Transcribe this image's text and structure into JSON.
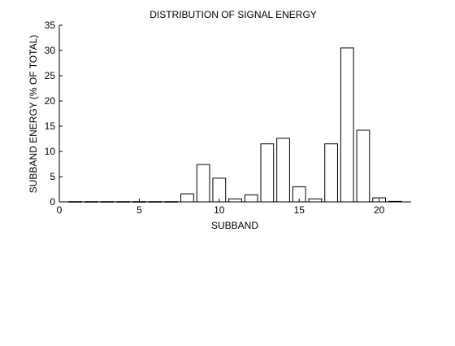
{
  "chart_data": {
    "type": "bar",
    "title": "DISTRIBUTION OF SIGNAL ENERGY",
    "xlabel": "SUBBAND",
    "ylabel": "SUBBAND ENERGY (% OF TOTAL)",
    "x": [
      1,
      2,
      3,
      4,
      5,
      6,
      7,
      8,
      9,
      10,
      11,
      12,
      13,
      14,
      15,
      16,
      17,
      18,
      19,
      20,
      21
    ],
    "values": [
      0.05,
      0.05,
      0.05,
      0.05,
      0.05,
      0.05,
      0.05,
      1.6,
      7.4,
      4.7,
      0.6,
      1.4,
      11.5,
      12.6,
      3.0,
      0.6,
      11.5,
      30.5,
      14.2,
      0.8,
      0.1
    ],
    "xlim": [
      0,
      22
    ],
    "ylim": [
      0,
      35
    ],
    "xticks": [
      0,
      5,
      10,
      15,
      20
    ],
    "yticks": [
      0,
      5,
      10,
      15,
      20,
      25,
      30,
      35
    ],
    "grid": false,
    "bar_fill": "#ffffff",
    "bar_stroke": "#000000"
  }
}
